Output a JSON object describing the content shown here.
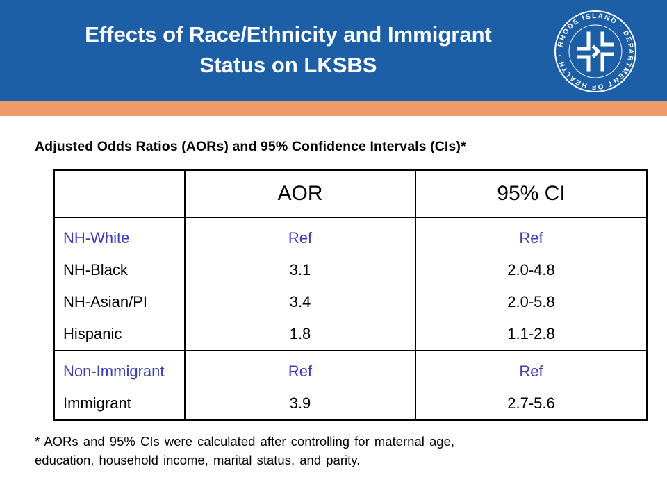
{
  "header": {
    "title_line1": "Effects of Race/Ethnicity and Immigrant",
    "title_line2": "Status on LKSBS",
    "seal_text": "RHODE ISLAND · DEPARTMENT OF HEALTH"
  },
  "subtitle": "Adjusted Odds Ratios (AORs) and 95% Confidence Intervals (CIs)*",
  "table": {
    "columns": [
      "",
      "AOR",
      "95% CI"
    ],
    "groups": [
      {
        "rows": [
          {
            "label": "NH-White",
            "aor": "Ref",
            "ci": "Ref"
          },
          {
            "label": "NH-Black",
            "aor": "3.1",
            "ci": "2.0-4.8"
          },
          {
            "label": "NH-Asian/PI",
            "aor": "3.4",
            "ci": "2.0-5.8"
          },
          {
            "label": "Hispanic",
            "aor": "1.8",
            "ci": "1.1-2.8"
          }
        ]
      },
      {
        "rows": [
          {
            "label": "Non-Immigrant",
            "aor": "Ref",
            "ci": "Ref"
          },
          {
            "label": "Immigrant",
            "aor": "3.9",
            "ci": "2.7-5.6"
          }
        ]
      }
    ]
  },
  "footnote": {
    "line1": "* AORs and 95% CIs were calculated after controlling for maternal age,",
    "line2": "education, household income, marital status, and parity."
  },
  "colors": {
    "header_blue": "#1d5fa7",
    "band_orange": "#ee9b6a",
    "reference_text": "#3d3db4"
  }
}
